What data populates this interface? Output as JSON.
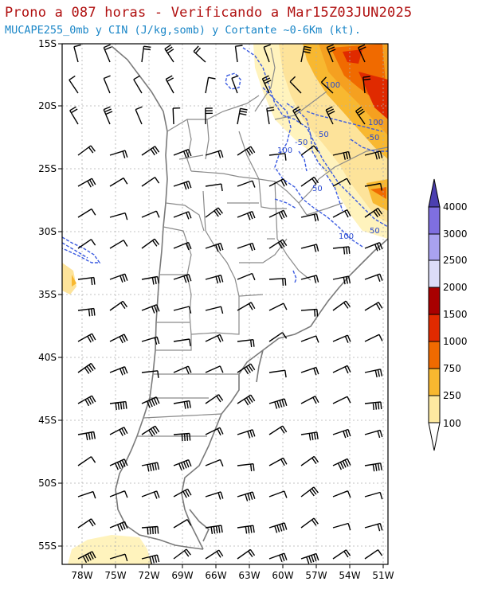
{
  "title": "Prono a 087 horas - Verificando a Mar15Z03JUN2025",
  "subtitle": "MUCAPE255_0mb y CIN (J/kg,somb) y Cortante ~0-6Km (kt).",
  "lat_labels": [
    "15S",
    "20S",
    "25S",
    "30S",
    "35S",
    "40S",
    "45S",
    "50S",
    "55S"
  ],
  "lon_labels": [
    "78W",
    "75W",
    "72W",
    "69W",
    "66W",
    "63W",
    "60W",
    "57W",
    "54W",
    "51W"
  ],
  "contour_labels": [
    "100",
    "50",
    "-50",
    "100",
    "-50",
    "100",
    "50",
    "100",
    "50"
  ],
  "colorbar": {
    "labels": [
      "4000",
      "3000",
      "2500",
      "2000",
      "1500",
      "1000",
      "750",
      "250",
      "100"
    ],
    "colors": [
      "#4b3fb0",
      "#7f6fe0",
      "#a9a2f0",
      "#dcdcf8",
      "#a80000",
      "#e02a00",
      "#f06a00",
      "#f8b830",
      "#fde9a0",
      "#fff7c8"
    ]
  }
}
